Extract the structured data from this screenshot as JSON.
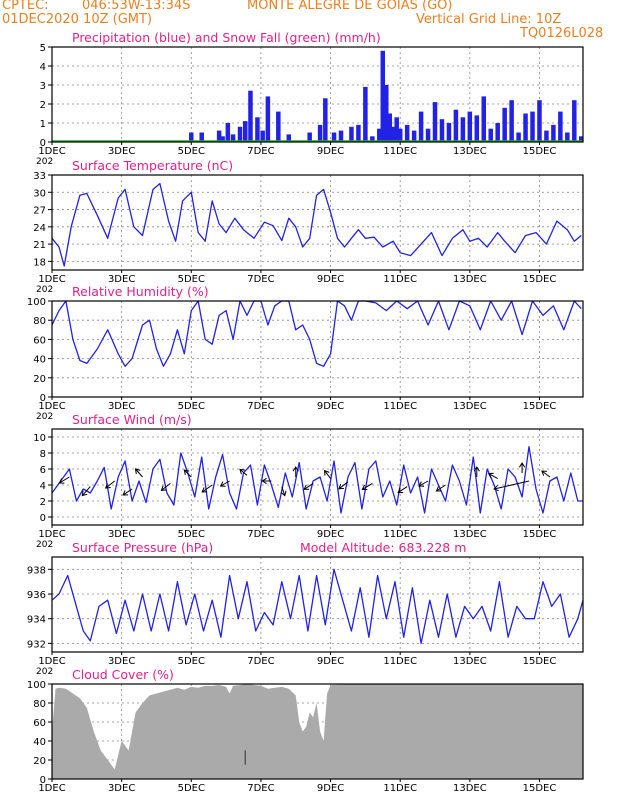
{
  "header": {
    "source": "CPTEC:",
    "coords": "046:53W-13:34S",
    "station": "MONTE ALEGRE DE GOIAS (GO)",
    "run": "01DEC2020 10Z (GMT)",
    "grid_line": "Vertical Grid Line: 10Z",
    "model": "TQ0126L028"
  },
  "colors": {
    "header": "#ee7f1f",
    "title": "#e0218a",
    "line": "#2222e6",
    "snow": "#22aa22",
    "cloud": "#aaaaaa"
  },
  "x_axis": {
    "ticks": [
      1,
      3,
      5,
      7,
      9,
      11,
      13,
      15
    ],
    "tick_labels": [
      "1DEC",
      "3DEC",
      "5DEC",
      "7DEC",
      "9DEC",
      "11DEC",
      "13DEC",
      "15DEC"
    ],
    "year_fragment": "202"
  },
  "chart_data": [
    {
      "id": "precip",
      "type": "bar",
      "title": "Precipitation (blue) and Snow Fall (green) (mm/h)",
      "xlim": [
        1,
        16.25
      ],
      "ylim": [
        0,
        5
      ],
      "yticks": [
        0,
        1,
        2,
        3,
        4,
        5
      ],
      "series": [
        {
          "name": "Precipitation",
          "x": [
            5.0,
            5.3,
            5.8,
            5.9,
            6.05,
            6.2,
            6.4,
            6.55,
            6.7,
            6.9,
            7.05,
            7.2,
            7.5,
            7.8,
            8.4,
            8.7,
            8.85,
            9.1,
            9.3,
            9.6,
            9.8,
            10.0,
            10.2,
            10.4,
            10.5,
            10.6,
            10.7,
            10.8,
            10.9,
            11.0,
            11.2,
            11.4,
            11.6,
            11.8,
            12.0,
            12.2,
            12.4,
            12.6,
            12.8,
            13.0,
            13.2,
            13.4,
            13.6,
            13.8,
            14.0,
            14.2,
            14.4,
            14.6,
            14.8,
            15.0,
            15.2,
            15.4,
            15.6,
            15.8,
            16.0,
            16.2
          ],
          "values": [
            0.5,
            0.5,
            0.6,
            0.3,
            1.0,
            0.4,
            0.8,
            1.1,
            2.7,
            1.3,
            0.6,
            2.4,
            1.6,
            0.4,
            0.5,
            0.9,
            2.3,
            0.5,
            0.6,
            0.8,
            0.9,
            2.9,
            0.3,
            0.7,
            4.8,
            3.0,
            1.5,
            0.8,
            1.3,
            0.7,
            0.9,
            0.6,
            1.6,
            0.7,
            2.1,
            1.2,
            1.0,
            1.7,
            1.3,
            1.6,
            1.4,
            2.4,
            0.7,
            1.0,
            1.8,
            2.2,
            0.5,
            1.5,
            1.6,
            2.2,
            0.6,
            0.9,
            1.6,
            0.5,
            2.2,
            0.3
          ]
        }
      ]
    },
    {
      "id": "temp",
      "type": "line",
      "title": "Surface Temperature (nC)",
      "xlim": [
        1,
        16.25
      ],
      "ylim": [
        16.5,
        33
      ],
      "yticks": [
        18,
        21,
        24,
        27,
        30,
        33
      ],
      "series": [
        {
          "name": "",
          "x": [
            1.0,
            1.2,
            1.35,
            1.55,
            1.8,
            2.0,
            2.3,
            2.6,
            2.9,
            3.1,
            3.35,
            3.6,
            3.9,
            4.1,
            4.35,
            4.55,
            4.75,
            5.0,
            5.2,
            5.4,
            5.6,
            5.8,
            6.0,
            6.25,
            6.5,
            6.8,
            7.1,
            7.35,
            7.6,
            7.8,
            8.0,
            8.2,
            8.4,
            8.6,
            8.8,
            9.0,
            9.2,
            9.4,
            9.6,
            9.8,
            10.0,
            10.25,
            10.5,
            10.8,
            11.0,
            11.3,
            11.6,
            11.9,
            12.2,
            12.5,
            12.8,
            13.0,
            13.25,
            13.5,
            13.8,
            14.0,
            14.3,
            14.6,
            14.9,
            15.2,
            15.5,
            15.8,
            16.0,
            16.2
          ],
          "values": [
            22.0,
            20.5,
            17.2,
            24.0,
            29.5,
            29.8,
            26.0,
            22.0,
            29.0,
            30.5,
            24.0,
            22.5,
            30.5,
            31.5,
            25.0,
            21.5,
            28.5,
            30.0,
            23.0,
            21.5,
            28.5,
            24.5,
            23.0,
            25.5,
            23.5,
            22.0,
            24.8,
            24.2,
            21.6,
            25.5,
            24.0,
            20.5,
            22.0,
            29.5,
            30.5,
            26.5,
            22.0,
            20.5,
            22.0,
            23.5,
            22.0,
            22.2,
            20.5,
            21.5,
            19.5,
            19.0,
            21.0,
            23.0,
            19.0,
            22.0,
            23.5,
            21.5,
            22.0,
            20.5,
            23.0,
            21.5,
            19.5,
            22.5,
            23.0,
            21.0,
            25.0,
            23.5,
            21.5,
            22.5
          ]
        }
      ]
    },
    {
      "id": "rh",
      "type": "line",
      "title": "Relative Humidity (%)",
      "xlim": [
        1,
        16.25
      ],
      "ylim": [
        0,
        100
      ],
      "yticks": [
        0,
        20,
        40,
        60,
        80,
        100
      ],
      "series": [
        {
          "name": "",
          "x": [
            1.0,
            1.2,
            1.4,
            1.6,
            1.8,
            2.0,
            2.3,
            2.6,
            2.9,
            3.1,
            3.3,
            3.6,
            3.8,
            4.0,
            4.2,
            4.4,
            4.6,
            4.8,
            5.0,
            5.2,
            5.4,
            5.6,
            5.8,
            6.0,
            6.2,
            6.4,
            6.6,
            6.8,
            7.0,
            7.2,
            7.4,
            7.6,
            7.8,
            8.0,
            8.2,
            8.4,
            8.6,
            8.8,
            9.0,
            9.2,
            9.4,
            9.6,
            9.8,
            10.0,
            10.3,
            10.6,
            10.9,
            11.2,
            11.5,
            11.8,
            12.1,
            12.4,
            12.7,
            13.0,
            13.3,
            13.6,
            13.9,
            14.2,
            14.5,
            14.8,
            15.1,
            15.4,
            15.7,
            16.0,
            16.2
          ],
          "values": [
            75,
            90,
            100,
            60,
            38,
            35,
            50,
            70,
            45,
            32,
            40,
            75,
            80,
            50,
            32,
            45,
            70,
            45,
            90,
            100,
            60,
            55,
            85,
            90,
            60,
            100,
            85,
            100,
            100,
            75,
            95,
            100,
            100,
            70,
            75,
            60,
            35,
            32,
            45,
            100,
            95,
            80,
            100,
            100,
            98,
            90,
            100,
            92,
            100,
            75,
            100,
            70,
            100,
            95,
            70,
            100,
            80,
            100,
            65,
            100,
            85,
            95,
            70,
            100,
            92
          ]
        }
      ]
    },
    {
      "id": "wind",
      "type": "line",
      "title": "Surface Wind (m/s)",
      "xlim": [
        1,
        16.25
      ],
      "ylim": [
        -1,
        11
      ],
      "yticks": [
        0,
        2,
        4,
        6,
        8,
        10
      ],
      "series": [
        {
          "name": "",
          "x": [
            1.0,
            1.3,
            1.5,
            1.7,
            1.9,
            2.1,
            2.3,
            2.5,
            2.7,
            2.9,
            3.1,
            3.3,
            3.5,
            3.7,
            3.9,
            4.1,
            4.3,
            4.5,
            4.7,
            4.9,
            5.1,
            5.3,
            5.5,
            5.7,
            5.9,
            6.1,
            6.3,
            6.5,
            6.7,
            6.9,
            7.1,
            7.3,
            7.5,
            7.7,
            7.9,
            8.1,
            8.3,
            8.5,
            8.7,
            8.9,
            9.1,
            9.3,
            9.5,
            9.7,
            9.9,
            10.1,
            10.3,
            10.5,
            10.7,
            10.9,
            11.1,
            11.3,
            11.5,
            11.7,
            11.9,
            12.1,
            12.3,
            12.5,
            12.7,
            12.9,
            13.1,
            13.3,
            13.5,
            13.7,
            13.9,
            14.1,
            14.3,
            14.5,
            14.7,
            14.9,
            15.1,
            15.3,
            15.5,
            15.7,
            15.9,
            16.1,
            16.25
          ],
          "values": [
            3.0,
            4.8,
            6.0,
            2.0,
            3.5,
            3.0,
            4.5,
            6.2,
            1.0,
            5.0,
            7.0,
            2.0,
            4.5,
            1.8,
            6.0,
            7.2,
            3.0,
            1.5,
            8.0,
            5.5,
            2.5,
            7.5,
            1.0,
            5.0,
            7.8,
            3.0,
            1.0,
            5.5,
            6.5,
            1.5,
            6.5,
            4.0,
            1.2,
            5.5,
            2.5,
            6.8,
            1.0,
            4.5,
            5.0,
            2.0,
            7.0,
            0.5,
            5.0,
            6.8,
            1.0,
            6.0,
            7.0,
            2.5,
            4.5,
            1.5,
            6.5,
            3.0,
            5.0,
            0.5,
            6.0,
            4.0,
            2.0,
            6.5,
            4.5,
            1.5,
            7.5,
            0.5,
            6.0,
            4.0,
            1.0,
            6.0,
            5.0,
            2.5,
            8.8,
            3.5,
            0.5,
            4.5,
            5.0,
            2.0,
            5.5,
            2.0,
            2.0
          ]
        }
      ],
      "vectors": [
        {
          "x": 1.5,
          "y": 5.0,
          "u": -1,
          "v": -0.6
        },
        {
          "x": 2.1,
          "y": 3.8,
          "u": -0.8,
          "v": -0.9
        },
        {
          "x": 2.8,
          "y": 4.5,
          "u": -0.9,
          "v": -0.7
        },
        {
          "x": 3.3,
          "y": 3.5,
          "u": -0.9,
          "v": -0.6
        },
        {
          "x": 3.6,
          "y": 5.0,
          "u": -0.7,
          "v": 0.8
        },
        {
          "x": 4.4,
          "y": 4.2,
          "u": -0.9,
          "v": -0.7
        },
        {
          "x": 5.0,
          "y": 5.0,
          "u": -0.7,
          "v": 0.7
        },
        {
          "x": 5.6,
          "y": 4.0,
          "u": -1,
          "v": -0.7
        },
        {
          "x": 6.1,
          "y": 4.5,
          "u": -0.9,
          "v": -0.5
        },
        {
          "x": 6.6,
          "y": 5.2,
          "u": -0.7,
          "v": 0.6
        },
        {
          "x": 7.3,
          "y": 4.5,
          "u": -0.9,
          "v": 0
        },
        {
          "x": 7.6,
          "y": 3.8,
          "u": 0.3,
          "v": -0.9
        },
        {
          "x": 8.0,
          "y": 5.0,
          "u": 0,
          "v": 1
        },
        {
          "x": 8.5,
          "y": 4.2,
          "u": -0.9,
          "v": -0.6
        },
        {
          "x": 9.0,
          "y": 4.8,
          "u": -0.6,
          "v": 0.8
        },
        {
          "x": 9.5,
          "y": 4.4,
          "u": -0.9,
          "v": -0.7
        },
        {
          "x": 10.2,
          "y": 4.2,
          "u": -1,
          "v": -0.6
        },
        {
          "x": 11.2,
          "y": 3.8,
          "u": -0.9,
          "v": -0.6
        },
        {
          "x": 11.8,
          "y": 4.5,
          "u": -0.9,
          "v": -0.5
        },
        {
          "x": 12.3,
          "y": 4.0,
          "u": -0.9,
          "v": -0.6
        },
        {
          "x": 13.2,
          "y": 5.0,
          "u": 0,
          "v": 1
        },
        {
          "x": 13.8,
          "y": 4.8,
          "u": -0.9,
          "v": 0.5
        },
        {
          "x": 14.5,
          "y": 5.5,
          "u": 0,
          "v": 1
        },
        {
          "x": 14.7,
          "y": 4.5,
          "u": -3.5,
          "v": -0.8
        },
        {
          "x": 15.3,
          "y": 5.0,
          "u": -0.8,
          "v": 0.6
        }
      ]
    },
    {
      "id": "pres",
      "type": "line",
      "title": "Surface Pressure (hPa)",
      "subtitle": "Model Altitude: 683.228  m",
      "xlim": [
        1,
        16.25
      ],
      "ylim": [
        931.3,
        939
      ],
      "yticks": [
        932,
        934,
        936,
        938
      ],
      "series": [
        {
          "name": "",
          "x": [
            1.0,
            1.2,
            1.45,
            1.7,
            1.9,
            2.1,
            2.35,
            2.6,
            2.85,
            3.1,
            3.35,
            3.6,
            3.85,
            4.1,
            4.35,
            4.6,
            4.85,
            5.1,
            5.35,
            5.6,
            5.85,
            6.1,
            6.35,
            6.6,
            6.85,
            7.1,
            7.35,
            7.6,
            7.85,
            8.1,
            8.35,
            8.6,
            8.85,
            9.1,
            9.35,
            9.6,
            9.85,
            10.1,
            10.35,
            10.6,
            10.85,
            11.1,
            11.35,
            11.6,
            11.85,
            12.1,
            12.35,
            12.6,
            12.85,
            13.1,
            13.35,
            13.6,
            13.85,
            14.1,
            14.35,
            14.6,
            14.85,
            15.1,
            15.35,
            15.6,
            15.85,
            16.1,
            16.25
          ],
          "values": [
            935.5,
            936.0,
            937.5,
            935.0,
            933.0,
            932.2,
            935.0,
            935.5,
            932.8,
            935.5,
            933.0,
            936.0,
            933.0,
            936.0,
            933.0,
            937.0,
            933.5,
            936.0,
            933.0,
            935.5,
            932.5,
            937.5,
            934.0,
            937.0,
            933.0,
            934.5,
            933.5,
            937.0,
            934.0,
            937.5,
            933.0,
            937.5,
            933.5,
            938.0,
            935.5,
            933.0,
            936.5,
            932.5,
            937.5,
            934.0,
            937.0,
            932.5,
            936.5,
            932.0,
            935.5,
            932.5,
            936.0,
            932.5,
            935.0,
            934.0,
            935.0,
            933.0,
            937.0,
            932.5,
            935.0,
            934.0,
            934.0,
            937.0,
            935.0,
            936.0,
            932.5,
            934.0,
            935.5
          ]
        }
      ]
    },
    {
      "id": "cloud",
      "type": "area",
      "title": "Cloud Cover (%)",
      "xlim": [
        1,
        16.25
      ],
      "ylim": [
        0,
        100
      ],
      "yticks": [
        0,
        20,
        40,
        60,
        80,
        100
      ],
      "series": [
        {
          "name": "",
          "x": [
            1.0,
            1.1,
            1.2,
            1.4,
            1.6,
            1.8,
            2.0,
            2.2,
            2.4,
            2.6,
            2.8,
            3.0,
            3.2,
            3.4,
            3.6,
            3.8,
            4.0,
            4.2,
            4.4,
            4.6,
            4.8,
            5.0,
            5.2,
            5.4,
            5.6,
            5.8,
            6.0,
            6.1,
            6.2,
            6.4,
            6.6,
            6.8,
            7.0,
            7.2,
            7.4,
            7.6,
            7.8,
            8.0,
            8.1,
            8.2,
            8.3,
            8.4,
            8.5,
            8.6,
            8.7,
            8.8,
            8.9,
            9.0,
            9.5,
            10.0,
            10.5,
            11.0,
            11.5,
            12.0,
            12.5,
            13.0,
            13.5,
            14.0,
            14.5,
            15.0,
            15.5,
            16.0,
            16.25
          ],
          "values": [
            50,
            95,
            96,
            95,
            90,
            85,
            75,
            50,
            30,
            20,
            10,
            40,
            30,
            70,
            80,
            88,
            90,
            92,
            94,
            96,
            94,
            97,
            96,
            98,
            98,
            99,
            97,
            90,
            98,
            99,
            100,
            99,
            98,
            95,
            96,
            97,
            95,
            88,
            60,
            50,
            55,
            70,
            65,
            80,
            50,
            40,
            90,
            99,
            100,
            100,
            100,
            100,
            100,
            100,
            100,
            100,
            100,
            100,
            100,
            100,
            100,
            100,
            100
          ]
        }
      ],
      "markers": [
        {
          "x": 6.55,
          "values": [
            15,
            30
          ]
        }
      ]
    }
  ]
}
